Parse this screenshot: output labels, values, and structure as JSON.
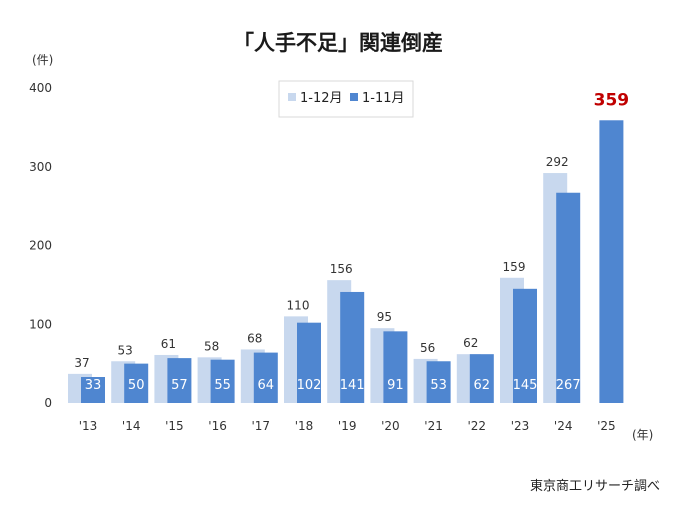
{
  "chart_data": {
    "type": "bar",
    "title": "「人手不足」関連倒産",
    "ylabel": "(件)",
    "xlabel": "(年)",
    "ylim": [
      0,
      400
    ],
    "yticks": [
      0,
      100,
      200,
      300,
      400
    ],
    "categories": [
      "'13",
      "'14",
      "'15",
      "'16",
      "'17",
      "'18",
      "'19",
      "'20",
      "'21",
      "'22",
      "'23",
      "'24",
      "'25"
    ],
    "series": [
      {
        "name": "1-12月",
        "values": [
          37,
          53,
          61,
          58,
          68,
          110,
          156,
          95,
          56,
          62,
          159,
          292,
          null
        ]
      },
      {
        "name": "1-11月",
        "values": [
          33,
          50,
          57,
          55,
          64,
          102,
          141,
          91,
          53,
          62,
          145,
          267,
          359
        ]
      }
    ],
    "highlight_label": "359",
    "legend_position": "top-center",
    "grid": false,
    "source": "東京商工リサーチ調べ",
    "colors": {
      "series_a": "#c8d8ee",
      "series_b": "#4f86d0",
      "highlight": "#c00000"
    }
  }
}
